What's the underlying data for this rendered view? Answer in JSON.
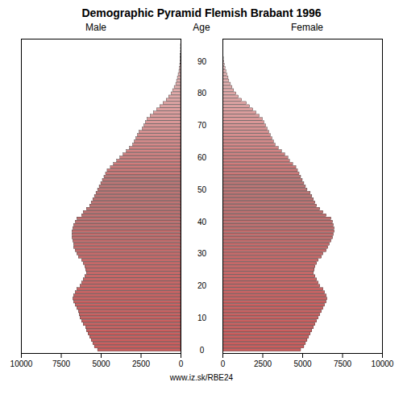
{
  "chart_data": {
    "type": "bar",
    "orientation": "horizontal",
    "title": "Demographic Pyramid Flemish Brabant 1996",
    "ylabel": "Age",
    "annotation": "www.iz.sk/RBE24",
    "categories": [
      0,
      1,
      2,
      3,
      4,
      5,
      6,
      7,
      8,
      9,
      10,
      11,
      12,
      13,
      14,
      15,
      16,
      17,
      18,
      19,
      20,
      21,
      22,
      23,
      24,
      25,
      26,
      27,
      28,
      29,
      30,
      31,
      32,
      33,
      34,
      35,
      36,
      37,
      38,
      39,
      40,
      41,
      42,
      43,
      44,
      45,
      46,
      47,
      48,
      49,
      50,
      51,
      52,
      53,
      54,
      55,
      56,
      57,
      58,
      59,
      60,
      61,
      62,
      63,
      64,
      65,
      66,
      67,
      68,
      69,
      70,
      71,
      72,
      73,
      74,
      75,
      76,
      77,
      78,
      79,
      80,
      81,
      82,
      83,
      84,
      85,
      86,
      87,
      88,
      89,
      90,
      91,
      92,
      93,
      94,
      95
    ],
    "series": [
      {
        "name": "Male",
        "values": [
          5200,
          5400,
          5500,
          5600,
          5700,
          5800,
          5900,
          5950,
          6100,
          6200,
          6300,
          6350,
          6400,
          6500,
          6600,
          6700,
          6750,
          6700,
          6600,
          6500,
          6300,
          6200,
          6100,
          6000,
          5900,
          5950,
          6000,
          6100,
          6200,
          6400,
          6500,
          6600,
          6700,
          6700,
          6750,
          6800,
          6800,
          6800,
          6750,
          6700,
          6600,
          6500,
          6200,
          6100,
          5900,
          5700,
          5600,
          5500,
          5400,
          5300,
          5200,
          5100,
          5000,
          4900,
          4800,
          4700,
          4600,
          4400,
          4200,
          4000,
          3800,
          3600,
          3400,
          3200,
          3000,
          2900,
          2800,
          2700,
          2600,
          2400,
          2300,
          2200,
          2100,
          1900,
          1700,
          1500,
          1300,
          1100,
          900,
          750,
          600,
          500,
          400,
          300,
          250,
          200,
          150,
          100,
          70,
          50,
          30,
          20,
          10,
          5,
          3,
          2
        ]
      },
      {
        "name": "Female",
        "values": [
          4900,
          5100,
          5200,
          5300,
          5400,
          5500,
          5600,
          5700,
          5800,
          5900,
          6000,
          6100,
          6200,
          6300,
          6400,
          6500,
          6550,
          6500,
          6400,
          6300,
          6100,
          6000,
          5900,
          5800,
          5700,
          5750,
          5800,
          5900,
          6000,
          6200,
          6300,
          6500,
          6600,
          6700,
          6800,
          6900,
          6950,
          7000,
          7000,
          6950,
          6900,
          6800,
          6500,
          6300,
          6100,
          5900,
          5800,
          5700,
          5600,
          5500,
          5300,
          5200,
          5100,
          5000,
          4900,
          4800,
          4700,
          4600,
          4400,
          4200,
          4100,
          3900,
          3700,
          3500,
          3300,
          3200,
          3100,
          3000,
          2900,
          2800,
          2700,
          2600,
          2500,
          2300,
          2100,
          1900,
          1700,
          1500,
          1200,
          1000,
          850,
          700,
          600,
          500,
          400,
          350,
          280,
          220,
          160,
          110,
          80,
          55,
          35,
          20,
          10,
          5
        ]
      }
    ],
    "colors": [
      "#CD5C5C",
      "#CC5C5C",
      "#CC5D5D",
      "#CC5D5D",
      "#CB5E5E",
      "#CB5E5E",
      "#CB5F5F",
      "#CA5F5F",
      "#CA6060",
      "#CA6060",
      "#CA6161",
      "#C96161",
      "#C96262",
      "#C96262",
      "#C86363",
      "#C86363",
      "#C86464",
      "#C76464",
      "#C76565",
      "#C76565",
      "#C76666",
      "#C66666",
      "#C66767",
      "#C66767",
      "#C56868",
      "#C56868",
      "#C56969",
      "#C46969",
      "#C46A6A",
      "#C46A6A",
      "#C46B6B",
      "#C36B6B",
      "#C36C6C",
      "#C36C6C",
      "#C26D6D",
      "#C26D6D",
      "#C26E6E",
      "#C16E6E",
      "#C16F6F",
      "#C16F6F",
      "#C17070",
      "#C07070",
      "#C07171",
      "#C07171",
      "#BF7272",
      "#BF7272",
      "#BF7373",
      "#BE7373",
      "#BE7474",
      "#BE7474",
      "#BE7575",
      "#BD7575",
      "#BD7676",
      "#BD7676",
      "#BC7777",
      "#CD7777",
      "#CD7979",
      "#CE7B7B",
      "#CF7D7D",
      "#D07F7F",
      "#D08181",
      "#D18383",
      "#D28585",
      "#D38787",
      "#D38989",
      "#D48B8B",
      "#D58D8D",
      "#D68F8F",
      "#D69191",
      "#D79393",
      "#D89595",
      "#D99797",
      "#D99999",
      "#DA9B9B",
      "#DB9D9D",
      "#DC9F9F",
      "#DCA1A1",
      "#DDA3A3",
      "#DEA5A5",
      "#DFA7A7",
      "#DFA9A9",
      "#E0ABAB",
      "#E1ADAD",
      "#E2AFAF",
      "#E2B1B1",
      "#E3B3B3",
      "#E4B5B5",
      "#E5B7B7",
      "#E5B9B9",
      "#E6BBBB",
      "#E7BDBD",
      "#E8BFBF",
      "#E8C1C1",
      "#E9C3C3",
      "#EAC5C5",
      "#EBC7C7"
    ],
    "xlim": [
      0,
      10000
    ],
    "xticks": [
      0,
      2500,
      5000,
      7500,
      10000
    ],
    "ylim": [
      -1,
      97
    ],
    "yticks": [
      0,
      10,
      20,
      30,
      40,
      50,
      60,
      70,
      80,
      90
    ]
  }
}
